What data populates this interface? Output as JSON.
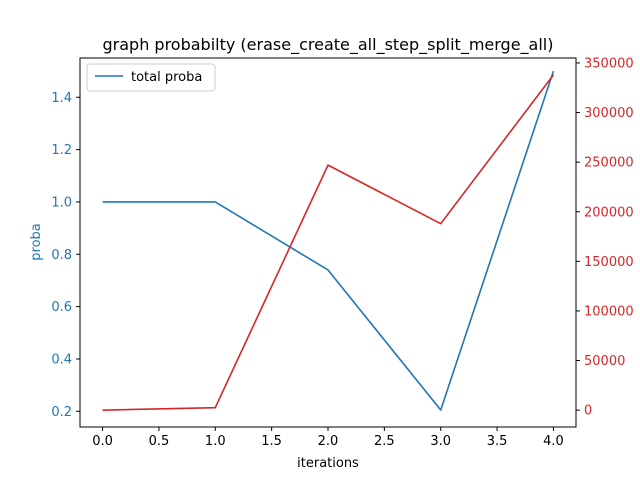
{
  "chart_data": {
    "type": "line",
    "title": "graph probabilty (erase_create_all_step_split_merge_all)",
    "xlabel": "iterations",
    "ylabel": "proba",
    "y2label": "",
    "x": [
      0,
      1,
      2,
      3,
      4
    ],
    "xlim": [
      -0.2,
      4.2
    ],
    "ylim": [
      0.14,
      1.55
    ],
    "y2lim": [
      -17000,
      355000
    ],
    "x_ticks": [
      "0.0",
      "0.5",
      "1.0",
      "1.5",
      "2.0",
      "2.5",
      "3.0",
      "3.5",
      "4.0"
    ],
    "y_ticks": [
      "0.2",
      "0.4",
      "0.6",
      "0.8",
      "1.0",
      "1.2",
      "1.4"
    ],
    "y2_ticks": [
      "0",
      "50000",
      "100000",
      "150000",
      "200000",
      "250000",
      "300000",
      "350000"
    ],
    "grid": false,
    "legend_position": "top-left",
    "series": [
      {
        "name": "total proba",
        "axis": "left",
        "color": "#1f77b4",
        "values": [
          1.0,
          1.0,
          0.74,
          0.205,
          1.5
        ]
      },
      {
        "axis": "right",
        "color": "#d62728",
        "values": [
          0,
          2500,
          247000,
          188000,
          338000
        ]
      }
    ],
    "left_axis_color": "#1f77b4",
    "right_axis_color": "#d62728"
  }
}
